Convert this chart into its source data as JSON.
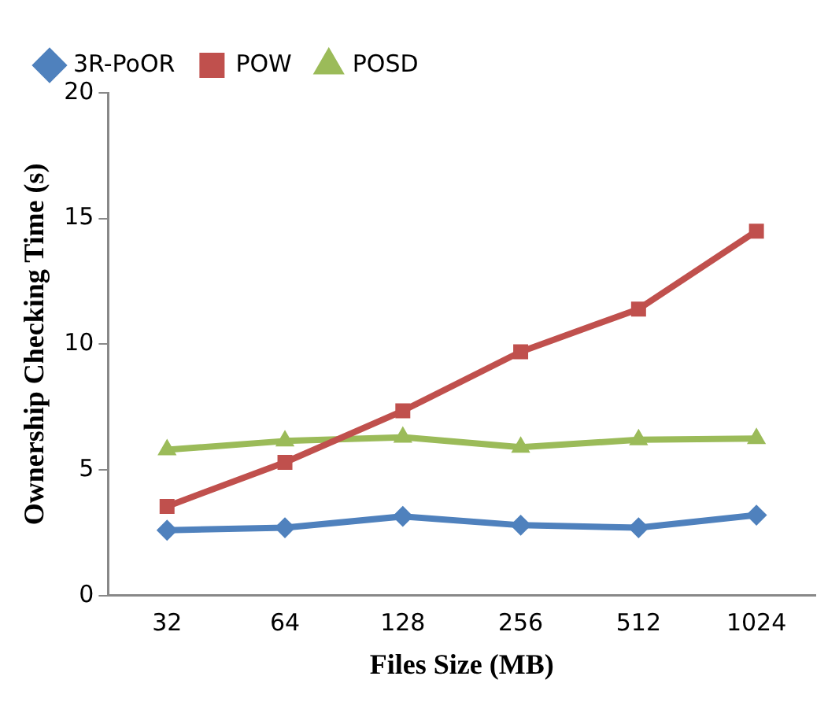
{
  "chart_data": {
    "type": "line",
    "xlabel": "Files Size (MB)",
    "ylabel": "Ownership Checking Time (s)",
    "categories": [
      "32",
      "64",
      "128",
      "256",
      "512",
      "1024"
    ],
    "series": [
      {
        "name": "3R-PoOR",
        "color": "#4f81bd",
        "marker": "diamond",
        "values": [
          2.6,
          2.7,
          3.15,
          2.8,
          2.7,
          3.2
        ]
      },
      {
        "name": "POW",
        "color": "#c0504d",
        "marker": "square",
        "values": [
          3.55,
          5.3,
          7.35,
          9.7,
          11.4,
          14.5
        ]
      },
      {
        "name": "POSD",
        "color": "#9bbb59",
        "marker": "triangle",
        "values": [
          5.8,
          6.15,
          6.3,
          5.9,
          6.2,
          6.25
        ]
      }
    ],
    "ylim": [
      0,
      20
    ],
    "yticks": [
      0,
      5,
      10,
      15,
      20
    ],
    "grid": false,
    "legend": "top left",
    "line_style": "solid"
  }
}
